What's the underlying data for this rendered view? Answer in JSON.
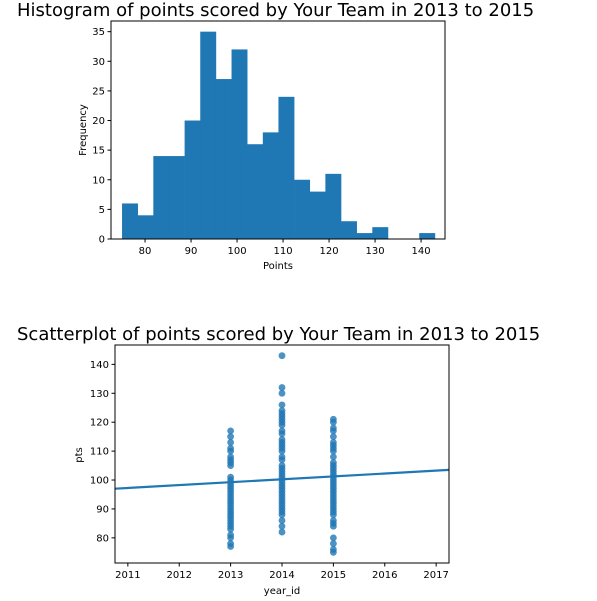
{
  "colors": {
    "bar": "#1f77b4",
    "point": "#1f77b4",
    "line": "#1f77b4"
  },
  "chart_data": [
    {
      "type": "bar",
      "title": "Histogram of points scored by Your Team in 2013 to 2015",
      "xlabel": "Points",
      "ylabel": "Frequency",
      "xlim": [
        72.6,
        145.2
      ],
      "ylim": [
        0,
        36.8
      ],
      "xticks": [
        80,
        90,
        100,
        110,
        120,
        130,
        140
      ],
      "yticks": [
        0,
        5,
        10,
        15,
        20,
        25,
        30,
        35
      ],
      "bin_edges": [
        75,
        78.4,
        81.8,
        85.2,
        88.6,
        92,
        95.4,
        98.8,
        102.2,
        105.6,
        109,
        112.4,
        115.8,
        119.2,
        122.6,
        126,
        129.4,
        132.8,
        136.2,
        139.6,
        143
      ],
      "values": [
        6,
        4,
        14,
        14,
        20,
        35,
        27,
        32,
        16,
        18,
        24,
        10,
        8,
        11,
        3,
        1,
        2,
        0,
        0,
        1
      ],
      "grid": false
    },
    {
      "type": "scatter",
      "title": "Scatterplot of points scored by Your Team in 2013 to 2015",
      "xlabel": "year_id",
      "ylabel": "pts",
      "xlim": [
        2010.75,
        2017.25
      ],
      "ylim": [
        71.3,
        146.7
      ],
      "xticks": [
        2011,
        2012,
        2013,
        2014,
        2015,
        2016,
        2017
      ],
      "yticks": [
        80,
        90,
        100,
        110,
        120,
        130,
        140
      ],
      "grid": false,
      "regression_line": {
        "x": [
          2010.75,
          2017.25
        ],
        "y": [
          97.0,
          103.5
        ]
      },
      "series": [
        {
          "x": 2013,
          "y": [
            77,
            78,
            80,
            81,
            83,
            84,
            85,
            86,
            87,
            88,
            89,
            90,
            91,
            92,
            93,
            94,
            95,
            96,
            97,
            98,
            99,
            100,
            101,
            105,
            106,
            107,
            108,
            110,
            111,
            113,
            115,
            117
          ]
        },
        {
          "x": 2014,
          "y": [
            82,
            84,
            86,
            88,
            89,
            90,
            91,
            92,
            93,
            94,
            95,
            96,
            97,
            98,
            99,
            100,
            101,
            102,
            103,
            104,
            105,
            107,
            108,
            110,
            111,
            112,
            113,
            114,
            116,
            117,
            119,
            120,
            121,
            122,
            123,
            124,
            126,
            130,
            132,
            143
          ]
        },
        {
          "x": 2015,
          "y": [
            75,
            76,
            78,
            80,
            84,
            85,
            86,
            88,
            89,
            90,
            91,
            92,
            93,
            94,
            95,
            96,
            97,
            98,
            99,
            100,
            101,
            102,
            103,
            104,
            105,
            106,
            108,
            110,
            111,
            112,
            113,
            115,
            117,
            118,
            120,
            121
          ]
        }
      ]
    }
  ]
}
